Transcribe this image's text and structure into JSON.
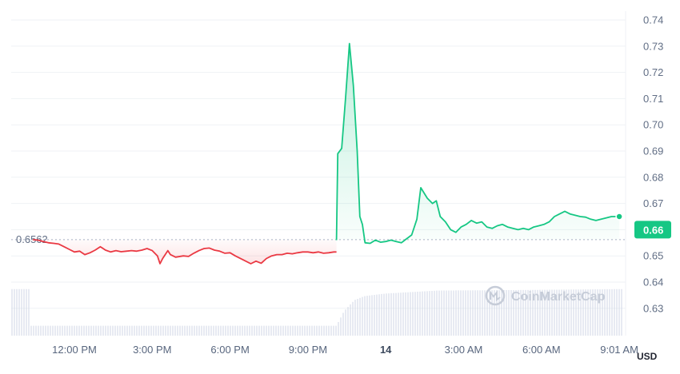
{
  "watermark": {
    "text": "CoinMarketCap",
    "icon": "coinmarketcap-logo-icon"
  },
  "colors": {
    "down": "#ea3943",
    "up": "#16c784",
    "grid": "#eff2f5",
    "volume": "#cfd6e4",
    "baseline": "#a6b0c3"
  },
  "chart_data": {
    "type": "area",
    "currency_label": "USD",
    "baseline": {
      "value": 0.6562,
      "label": "0.6562"
    },
    "last_price": {
      "value": 0.66,
      "label": "0.66"
    },
    "ylim": [
      0.62,
      0.745
    ],
    "y_ticks": [
      {
        "value": 0.74,
        "label": "0.74"
      },
      {
        "value": 0.73,
        "label": "0.73"
      },
      {
        "value": 0.72,
        "label": "0.72"
      },
      {
        "value": 0.71,
        "label": "0.71"
      },
      {
        "value": 0.7,
        "label": "0.70"
      },
      {
        "value": 0.69,
        "label": "0.69"
      },
      {
        "value": 0.68,
        "label": "0.68"
      },
      {
        "value": 0.67,
        "label": "0.67"
      },
      {
        "value": 0.66,
        "label": "0.66"
      },
      {
        "value": 0.65,
        "label": "0.65"
      },
      {
        "value": 0.64,
        "label": "0.64"
      },
      {
        "value": 0.63,
        "label": "0.63"
      }
    ],
    "x_ticks": [
      {
        "h": 12,
        "label": "12:00 PM",
        "bold": false
      },
      {
        "h": 15,
        "label": "3:00 PM",
        "bold": false
      },
      {
        "h": 18,
        "label": "6:00 PM",
        "bold": false
      },
      {
        "h": 21,
        "label": "9:00 PM",
        "bold": false
      },
      {
        "h": 24,
        "label": "14",
        "bold": true
      },
      {
        "h": 27,
        "label": "3:00 AM",
        "bold": false
      },
      {
        "h": 30,
        "label": "6:00 AM",
        "bold": false
      },
      {
        "h": 33,
        "label": "9:01 AM",
        "bold": false
      }
    ],
    "x_unit": "hours",
    "xlim": [
      10.3,
      33.1
    ],
    "series": [
      {
        "points": [
          [
            10.4,
            0.6562
          ],
          [
            10.6,
            0.656
          ],
          [
            10.8,
            0.6555
          ],
          [
            11.0,
            0.655
          ],
          [
            11.2,
            0.6548
          ],
          [
            11.4,
            0.6545
          ],
          [
            11.6,
            0.6535
          ],
          [
            11.8,
            0.6525
          ],
          [
            12.0,
            0.6515
          ],
          [
            12.2,
            0.6518
          ],
          [
            12.4,
            0.6505
          ],
          [
            12.6,
            0.6512
          ],
          [
            12.8,
            0.6522
          ],
          [
            13.0,
            0.6535
          ],
          [
            13.2,
            0.6522
          ],
          [
            13.4,
            0.6515
          ],
          [
            13.6,
            0.652
          ],
          [
            13.8,
            0.6516
          ],
          [
            14.0,
            0.6518
          ],
          [
            14.2,
            0.652
          ],
          [
            14.4,
            0.6518
          ],
          [
            14.6,
            0.6522
          ],
          [
            14.8,
            0.6528
          ],
          [
            15.0,
            0.652
          ],
          [
            15.2,
            0.65
          ],
          [
            15.3,
            0.647
          ],
          [
            15.4,
            0.649
          ],
          [
            15.6,
            0.652
          ],
          [
            15.7,
            0.6505
          ],
          [
            15.9,
            0.6495
          ],
          [
            16.2,
            0.65
          ],
          [
            16.4,
            0.6498
          ],
          [
            16.6,
            0.651
          ],
          [
            16.8,
            0.652
          ],
          [
            17.0,
            0.6528
          ],
          [
            17.2,
            0.653
          ],
          [
            17.4,
            0.6522
          ],
          [
            17.6,
            0.6518
          ],
          [
            17.8,
            0.651
          ],
          [
            18.0,
            0.6512
          ],
          [
            18.2,
            0.65
          ],
          [
            18.5,
            0.6485
          ],
          [
            18.8,
            0.647
          ],
          [
            19.0,
            0.648
          ],
          [
            19.2,
            0.6472
          ],
          [
            19.4,
            0.649
          ],
          [
            19.6,
            0.65
          ],
          [
            19.8,
            0.6505
          ],
          [
            20.0,
            0.6505
          ],
          [
            20.2,
            0.651
          ],
          [
            20.4,
            0.6508
          ],
          [
            20.6,
            0.6512
          ],
          [
            20.8,
            0.6515
          ],
          [
            21.0,
            0.6515
          ],
          [
            21.2,
            0.6512
          ],
          [
            21.4,
            0.6515
          ],
          [
            21.6,
            0.651
          ],
          [
            21.8,
            0.6512
          ],
          [
            22.0,
            0.6515
          ],
          [
            22.1,
            0.6515
          ]
        ]
      },
      {
        "points": [
          [
            22.1,
            0.656
          ],
          [
            22.15,
            0.689
          ],
          [
            22.3,
            0.691
          ],
          [
            22.45,
            0.71
          ],
          [
            22.6,
            0.731
          ],
          [
            22.75,
            0.715
          ],
          [
            22.9,
            0.69
          ],
          [
            23.0,
            0.665
          ],
          [
            23.1,
            0.662
          ],
          [
            23.2,
            0.655
          ],
          [
            23.4,
            0.6548
          ],
          [
            23.6,
            0.656
          ],
          [
            23.8,
            0.6552
          ],
          [
            24.0,
            0.6555
          ],
          [
            24.2,
            0.656
          ],
          [
            24.4,
            0.6555
          ],
          [
            24.6,
            0.655
          ],
          [
            24.8,
            0.6565
          ],
          [
            25.0,
            0.658
          ],
          [
            25.2,
            0.664
          ],
          [
            25.35,
            0.676
          ],
          [
            25.6,
            0.672
          ],
          [
            25.8,
            0.67
          ],
          [
            25.95,
            0.671
          ],
          [
            26.1,
            0.665
          ],
          [
            26.3,
            0.663
          ],
          [
            26.5,
            0.66
          ],
          [
            26.7,
            0.659
          ],
          [
            26.9,
            0.661
          ],
          [
            27.1,
            0.662
          ],
          [
            27.3,
            0.6635
          ],
          [
            27.5,
            0.6625
          ],
          [
            27.7,
            0.663
          ],
          [
            27.9,
            0.661
          ],
          [
            28.1,
            0.6605
          ],
          [
            28.3,
            0.6615
          ],
          [
            28.5,
            0.662
          ],
          [
            28.7,
            0.661
          ],
          [
            28.9,
            0.6605
          ],
          [
            29.1,
            0.66
          ],
          [
            29.3,
            0.6605
          ],
          [
            29.5,
            0.66
          ],
          [
            29.7,
            0.661
          ],
          [
            29.9,
            0.6615
          ],
          [
            30.1,
            0.662
          ],
          [
            30.3,
            0.663
          ],
          [
            30.5,
            0.665
          ],
          [
            30.7,
            0.666
          ],
          [
            30.9,
            0.667
          ],
          [
            31.1,
            0.666
          ],
          [
            31.3,
            0.6655
          ],
          [
            31.5,
            0.665
          ],
          [
            31.7,
            0.6648
          ],
          [
            31.9,
            0.664
          ],
          [
            32.1,
            0.6635
          ],
          [
            32.3,
            0.664
          ],
          [
            32.5,
            0.6645
          ],
          [
            32.7,
            0.665
          ],
          [
            32.9,
            0.665
          ],
          [
            33.0,
            0.665
          ]
        ]
      }
    ],
    "volume": [
      [
        10.3,
        0.2
      ],
      [
        22.1,
        0.2
      ],
      [
        22.4,
        0.5
      ],
      [
        22.8,
        0.72
      ],
      [
        23.2,
        0.8
      ],
      [
        24.0,
        0.85
      ],
      [
        26.0,
        0.91
      ],
      [
        29.0,
        0.92
      ],
      [
        33.1,
        0.94
      ]
    ]
  }
}
